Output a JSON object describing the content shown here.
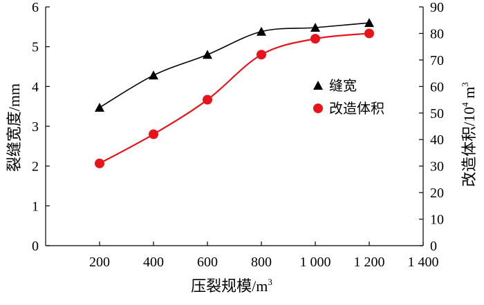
{
  "chart_data": {
    "type": "line",
    "x": [
      200,
      400,
      600,
      800,
      1000,
      1200
    ],
    "xlabel": "压裂规模/m",
    "xlabel_sup": "3",
    "ylabel": "裂缝宽度/mm",
    "y2label": "改造体积/10",
    "y2label_sup1": "4",
    "y2label_mid": " m",
    "y2label_sup2": "3",
    "xlim": [
      0,
      1400
    ],
    "ylim": [
      0,
      6
    ],
    "y2lim": [
      0,
      90
    ],
    "xticks": [
      200,
      400,
      600,
      800,
      1000,
      1200,
      1400
    ],
    "xtick_labels": [
      "200",
      "400",
      "600",
      "800",
      "1 000",
      "1 200",
      "1 400"
    ],
    "yticks": [
      0,
      1,
      2,
      3,
      4,
      5,
      6
    ],
    "ytick_labels": [
      "0",
      "1",
      "2",
      "3",
      "4",
      "5",
      "6"
    ],
    "y2ticks": [
      0,
      10,
      20,
      30,
      40,
      50,
      60,
      70,
      80,
      90
    ],
    "y2tick_labels": [
      "0",
      "10",
      "20",
      "30",
      "40",
      "50",
      "60",
      "70",
      "80",
      "90"
    ],
    "grid": false,
    "legend_position": "right-middle",
    "series": [
      {
        "name": "缝宽",
        "axis": "left",
        "marker": "triangle",
        "color": "#000000",
        "values": [
          3.47,
          4.28,
          4.8,
          5.38,
          5.48,
          5.6
        ]
      },
      {
        "name": "改造体积",
        "axis": "right",
        "marker": "circle",
        "color": "#e8141b",
        "values": [
          31,
          42,
          55,
          72,
          78,
          80
        ]
      }
    ]
  }
}
